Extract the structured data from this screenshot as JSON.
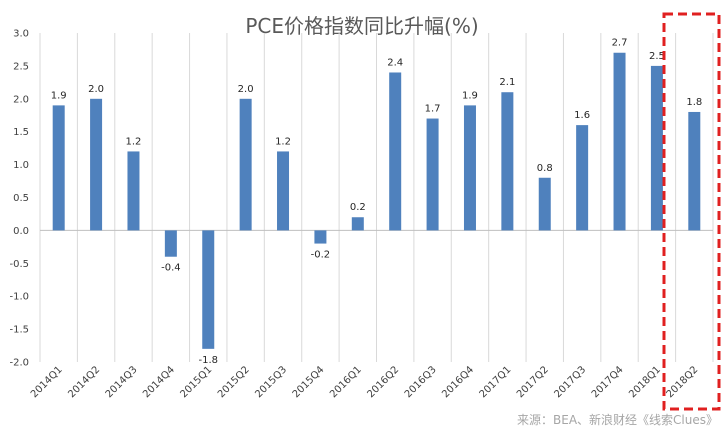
{
  "chart_data": {
    "type": "bar",
    "title": "PCE价格指数同比升幅(%)",
    "categories": [
      "2014Q1",
      "2014Q2",
      "2014Q3",
      "2014Q4",
      "2015Q1",
      "2015Q2",
      "2015Q3",
      "2015Q4",
      "2016Q1",
      "2016Q2",
      "2016Q3",
      "2016Q4",
      "2017Q1",
      "2017Q2",
      "2017Q3",
      "2017Q4",
      "2018Q1",
      "2018Q2"
    ],
    "values": [
      1.9,
      2.0,
      1.2,
      -0.4,
      -1.8,
      2.0,
      1.2,
      -0.2,
      0.2,
      2.4,
      1.7,
      1.9,
      2.1,
      0.8,
      1.6,
      2.7,
      2.5,
      1.8
    ],
    "data_labels": [
      "1.9",
      "2.0",
      "1.2",
      "-0.4",
      "-1.8",
      "2.0",
      "1.2",
      "-0.2",
      "0.2",
      "2.4",
      "1.7",
      "1.9",
      "2.1",
      "0.8",
      "1.6",
      "2.7",
      "2.5",
      "1.8"
    ],
    "y_ticks": [
      "3.0",
      "2.5",
      "2.0",
      "1.5",
      "1.0",
      "0.5",
      "0.0",
      "-0.5",
      "-1.0",
      "-1.5",
      "-2.0"
    ],
    "ylim": [
      -2.0,
      3.0
    ],
    "grid": "vertical category separators",
    "legend": "none",
    "highlight": "2018Q2",
    "source": "来源：BEA、新浪财经《线索Clues》",
    "colors": {
      "bar": "#4f81bd",
      "highlight": "#e02020",
      "grid": "#d9d9d9"
    }
  }
}
